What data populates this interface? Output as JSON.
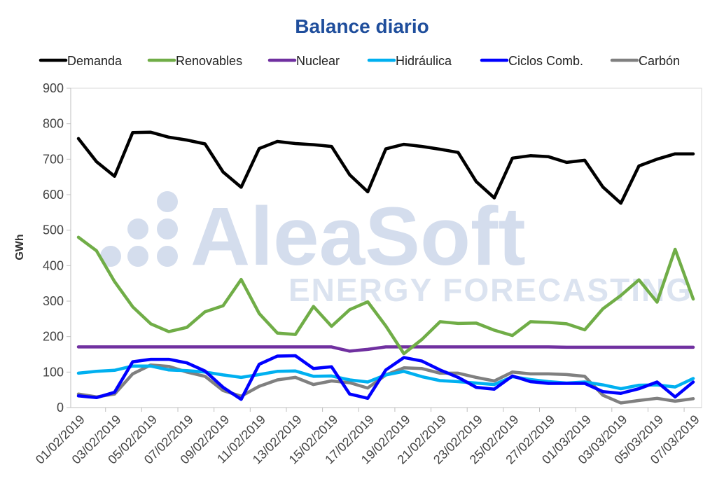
{
  "chart_data": {
    "type": "line",
    "title": "Balance diario",
    "xlabel": "",
    "ylabel": "GWh",
    "ylim": [
      0,
      900
    ],
    "yticks": [
      0,
      100,
      200,
      300,
      400,
      500,
      600,
      700,
      800,
      900
    ],
    "grid": false,
    "legend_position": "top",
    "x_tick_labels": [
      "01/02/2019",
      "03/02/2019",
      "05/02/2019",
      "07/02/2019",
      "09/02/2019",
      "11/02/2019",
      "13/02/2019",
      "15/02/2019",
      "17/02/2019",
      "19/02/2019",
      "21/02/2019",
      "23/02/2019",
      "25/02/2019",
      "27/02/2019",
      "01/03/2019",
      "03/03/2019",
      "05/03/2019",
      "07/03/2019"
    ],
    "x": [
      "01/02/2019",
      "02/02/2019",
      "03/02/2019",
      "04/02/2019",
      "05/02/2019",
      "06/02/2019",
      "07/02/2019",
      "08/02/2019",
      "09/02/2019",
      "10/02/2019",
      "11/02/2019",
      "12/02/2019",
      "13/02/2019",
      "14/02/2019",
      "15/02/2019",
      "16/02/2019",
      "17/02/2019",
      "18/02/2019",
      "19/02/2019",
      "20/02/2019",
      "21/02/2019",
      "22/02/2019",
      "23/02/2019",
      "24/02/2019",
      "25/02/2019",
      "26/02/2019",
      "27/02/2019",
      "28/02/2019",
      "01/03/2019",
      "02/03/2019",
      "03/03/2019",
      "04/03/2019",
      "05/03/2019",
      "06/03/2019",
      "07/03/2019"
    ],
    "series": [
      {
        "name": "Demanda",
        "color": "#000000",
        "values": [
          758,
          693,
          652,
          775,
          776,
          762,
          754,
          743,
          664,
          621,
          730,
          750,
          744,
          741,
          736,
          656,
          608,
          729,
          742,
          736,
          728,
          719,
          637,
          591,
          703,
          710,
          707,
          691,
          697,
          622,
          576,
          681,
          700,
          715,
          715
        ]
      },
      {
        "name": "Renovables",
        "color": "#70ad47",
        "values": [
          480,
          442,
          355,
          284,
          236,
          214,
          226,
          270,
          287,
          361,
          265,
          210,
          206,
          285,
          229,
          276,
          298,
          230,
          152,
          192,
          242,
          237,
          238,
          218,
          203,
          242,
          240,
          236,
          219,
          278,
          316,
          360,
          297,
          446,
          306
        ]
      },
      {
        "name": "Nuclear",
        "color": "#7030a0",
        "values": [
          171,
          171,
          171,
          171,
          171,
          171,
          171,
          171,
          171,
          171,
          171,
          171,
          171,
          171,
          171,
          159,
          164,
          171,
          171,
          171,
          171,
          171,
          171,
          171,
          171,
          171,
          171,
          170,
          170,
          170,
          170,
          170,
          170,
          170,
          170
        ]
      },
      {
        "name": "Hidráulica",
        "color": "#00b0f0",
        "values": [
          97,
          102,
          105,
          117,
          117,
          106,
          104,
          100,
          92,
          85,
          93,
          102,
          103,
          88,
          89,
          78,
          72,
          92,
          102,
          87,
          76,
          73,
          69,
          65,
          87,
          79,
          73,
          69,
          72,
          64,
          53,
          63,
          64,
          58,
          82
        ]
      },
      {
        "name": "Ciclos Comb.",
        "color": "#0000ff",
        "values": [
          33,
          28,
          43,
          129,
          136,
          136,
          126,
          103,
          57,
          23,
          122,
          145,
          146,
          110,
          115,
          38,
          26,
          106,
          141,
          131,
          106,
          85,
          57,
          52,
          89,
          73,
          68,
          68,
          68,
          45,
          40,
          53,
          72,
          30,
          72
        ]
      },
      {
        "name": "Carbón",
        "color": "#808080",
        "values": [
          38,
          30,
          38,
          95,
          120,
          116,
          100,
          88,
          48,
          32,
          60,
          78,
          85,
          65,
          75,
          70,
          55,
          92,
          112,
          110,
          97,
          97,
          85,
          75,
          100,
          95,
          95,
          93,
          88,
          35,
          13,
          20,
          26,
          18,
          25
        ]
      }
    ]
  },
  "watermark": {
    "brand": "AleaSoft",
    "tagline": "ENERGY FORECASTING"
  }
}
